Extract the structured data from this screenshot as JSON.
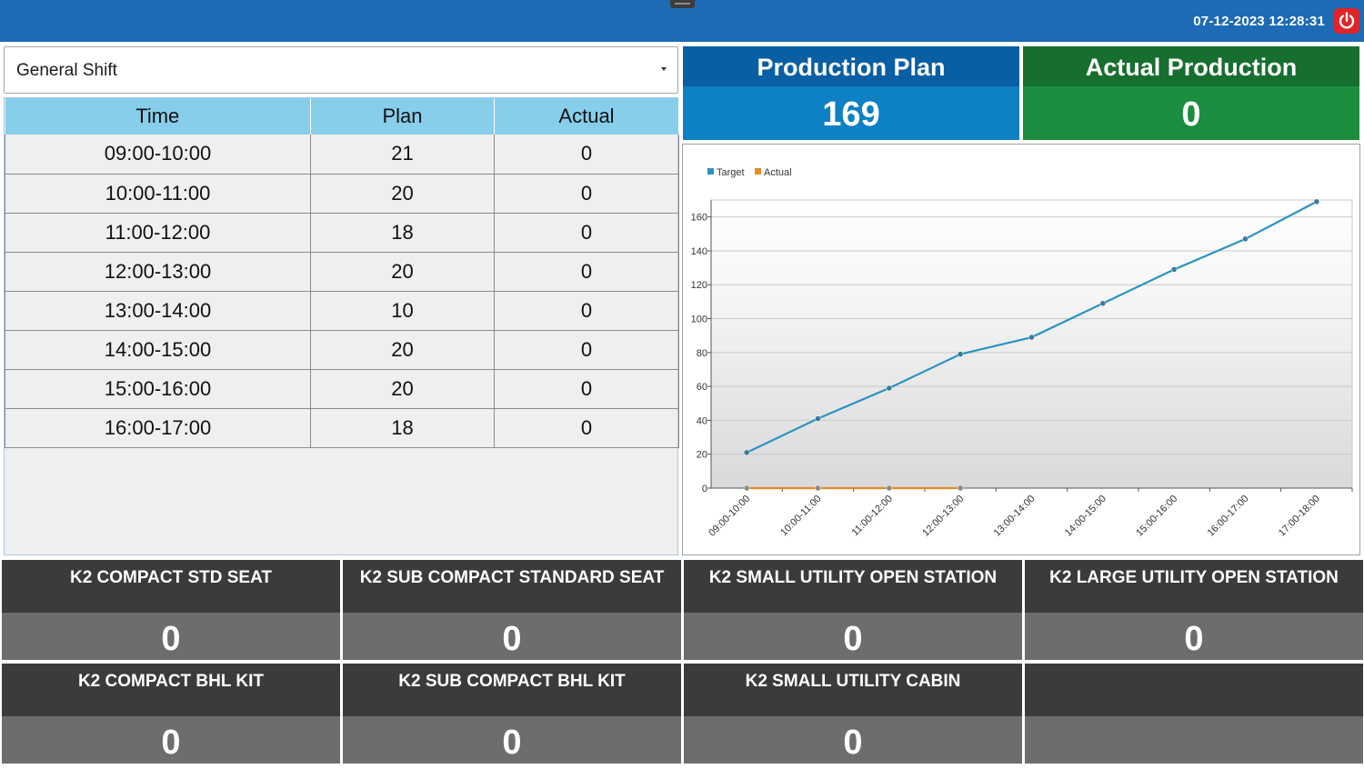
{
  "header": {
    "datetime": "07-12-2023 12:28:31",
    "power_icon": "power-icon",
    "colors": {
      "bar": "#1d6bb5",
      "power": "#e0242a"
    }
  },
  "shift_select": {
    "value": "General Shift"
  },
  "table": {
    "columns": [
      "Time",
      "Plan",
      "Actual"
    ],
    "rows": [
      [
        "09:00-10:00",
        "21",
        "0"
      ],
      [
        "10:00-11:00",
        "20",
        "0"
      ],
      [
        "11:00-12:00",
        "18",
        "0"
      ],
      [
        "12:00-13:00",
        "20",
        "0"
      ],
      [
        "13:00-14:00",
        "10",
        "0"
      ],
      [
        "14:00-15:00",
        "20",
        "0"
      ],
      [
        "15:00-16:00",
        "20",
        "0"
      ],
      [
        "16:00-17:00",
        "18",
        "0"
      ]
    ]
  },
  "kpis": {
    "plan": {
      "label": "Production Plan",
      "value": "169"
    },
    "actual": {
      "label": "Actual Production",
      "value": "0"
    }
  },
  "chart_data": {
    "type": "line",
    "categories": [
      "09:00-10:00",
      "10:00-11:00",
      "11:00-12:00",
      "12:00-13:00",
      "13:00-14:00",
      "14:00-15:00",
      "15:00-16:00",
      "16:00-17:00",
      "17:00-18:00"
    ],
    "series": [
      {
        "name": "Target",
        "color": "#2a93c3",
        "values": [
          21,
          41,
          59,
          79,
          89,
          109,
          129,
          147,
          169
        ]
      },
      {
        "name": "Actual",
        "color": "#e58a2a",
        "values": [
          0,
          0,
          0,
          0,
          null,
          null,
          null,
          null,
          null
        ]
      }
    ],
    "ylim": [
      0,
      170
    ],
    "yticks": [
      0,
      20,
      40,
      60,
      80,
      100,
      120,
      140,
      160
    ],
    "legend_position": "top-left",
    "grid": true
  },
  "tiles": [
    {
      "label": "K2 COMPACT STD SEAT",
      "value": "0"
    },
    {
      "label": "K2 SUB COMPACT STANDARD SEAT",
      "value": "0"
    },
    {
      "label": "K2 SMALL UTILITY OPEN STATION",
      "value": "0"
    },
    {
      "label": "K2 LARGE UTILITY OPEN STATION",
      "value": "0"
    },
    {
      "label": "K2 COMPACT BHL KIT",
      "value": "0"
    },
    {
      "label": "K2 SUB COMPACT BHL KIT",
      "value": "0"
    },
    {
      "label": "K2 SMALL UTILITY CABIN",
      "value": "0"
    },
    {
      "label": "",
      "value": ""
    }
  ]
}
